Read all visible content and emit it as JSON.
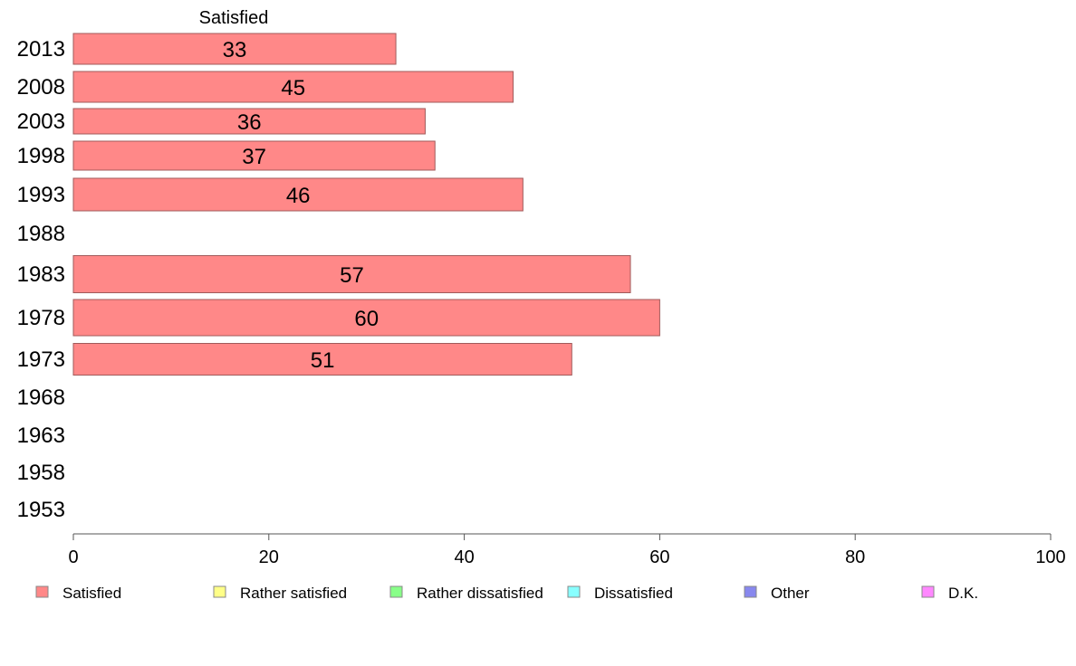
{
  "chart_data": {
    "type": "bar",
    "orientation": "horizontal",
    "stacked": true,
    "column_header": "Satisfied",
    "categories": [
      "2013",
      "2008",
      "2003",
      "1998",
      "1993",
      "1988",
      "1983",
      "1978",
      "1973",
      "1968",
      "1963",
      "1958",
      "1953"
    ],
    "series": [
      {
        "name": "Satisfied",
        "color": "#ff8888",
        "values": [
          33,
          45,
          36,
          37,
          46,
          null,
          57,
          60,
          51,
          null,
          null,
          null,
          null
        ]
      },
      {
        "name": "Rather satisfied",
        "color": "#ffff88",
        "values": [
          null,
          null,
          null,
          null,
          null,
          null,
          null,
          null,
          null,
          null,
          null,
          null,
          null
        ]
      },
      {
        "name": "Rather dissatisfied",
        "color": "#88ff88",
        "values": [
          null,
          null,
          null,
          null,
          null,
          null,
          null,
          null,
          null,
          null,
          null,
          null,
          null
        ]
      },
      {
        "name": "Dissatisfied",
        "color": "#88ffff",
        "values": [
          null,
          null,
          null,
          null,
          null,
          null,
          null,
          null,
          null,
          null,
          null,
          null,
          null
        ]
      },
      {
        "name": "Other",
        "color": "#8888ee",
        "values": [
          null,
          null,
          null,
          null,
          null,
          null,
          null,
          null,
          null,
          null,
          null,
          null,
          null
        ]
      },
      {
        "name": "D.K.",
        "color": "#ff88ff",
        "values": [
          null,
          null,
          null,
          null,
          null,
          null,
          null,
          null,
          null,
          null,
          null,
          null,
          null
        ]
      }
    ],
    "xlim": [
      0,
      100
    ],
    "xticks": [
      0,
      20,
      40,
      60,
      80,
      100
    ],
    "grid": false,
    "legend_position": "bottom"
  }
}
